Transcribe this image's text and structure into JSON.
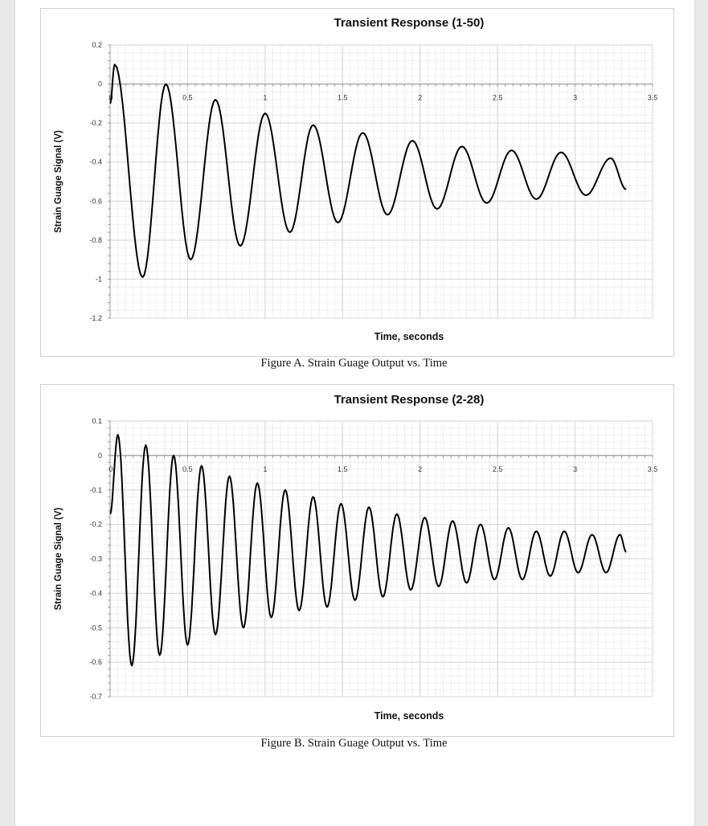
{
  "chart_data": [
    {
      "type": "line",
      "title": "Transient Response (1-50)",
      "xlabel": "Time, seconds",
      "ylabel": "Strain Guage Signal (V)",
      "caption": "Figure A. Strain Guage Output vs. Time",
      "xlim": [
        0,
        3.5
      ],
      "ylim": [
        -1.2,
        0.2
      ],
      "x_ticks": [
        "0.5",
        "1",
        "1.5",
        "2",
        "2.5",
        "3",
        "3.5"
      ],
      "y_ticks": [
        "0.2",
        "0",
        "-0.2",
        "-0.4",
        "-0.6",
        "-0.8",
        "-1",
        "-1.2"
      ],
      "grid": true,
      "series_color": "#000000",
      "x": [
        0,
        0.03,
        0.21,
        0.36,
        0.52,
        0.68,
        0.84,
        1.0,
        1.16,
        1.31,
        1.47,
        1.63,
        1.79,
        1.95,
        2.11,
        2.27,
        2.43,
        2.59,
        2.75,
        2.91,
        3.07,
        3.23,
        3.33
      ],
      "y": [
        -0.1,
        0.1,
        -0.99,
        0.0,
        -0.9,
        -0.08,
        -0.83,
        -0.15,
        -0.76,
        -0.21,
        -0.71,
        -0.25,
        -0.67,
        -0.29,
        -0.64,
        -0.32,
        -0.61,
        -0.34,
        -0.59,
        -0.35,
        -0.57,
        -0.38,
        -0.54
      ]
    },
    {
      "type": "line",
      "title": "Transient Response (2-28)",
      "xlabel": "Time, seconds",
      "ylabel": "Strain Guage Signal (V)",
      "caption": "Figure B. Strain Guage Output vs. Time",
      "xlim": [
        0,
        3.5
      ],
      "ylim": [
        -0.7,
        0.1
      ],
      "x_ticks": [
        "0.5",
        "1",
        "1.5",
        "2",
        "2.5",
        "3",
        "3.5"
      ],
      "y_ticks": [
        "0.1",
        "0",
        "-0.1",
        "-0.2",
        "-0.3",
        "-0.4",
        "-0.5",
        "-0.6",
        "-0.7"
      ],
      "grid": true,
      "series_color": "#000000",
      "x": [
        0,
        0.05,
        0.14,
        0.23,
        0.32,
        0.41,
        0.5,
        0.59,
        0.68,
        0.77,
        0.86,
        0.95,
        1.04,
        1.13,
        1.22,
        1.31,
        1.4,
        1.49,
        1.58,
        1.67,
        1.76,
        1.85,
        1.94,
        2.03,
        2.12,
        2.21,
        2.3,
        2.39,
        2.48,
        2.57,
        2.66,
        2.75,
        2.84,
        2.93,
        3.02,
        3.11,
        3.2,
        3.29,
        3.33
      ],
      "y": [
        -0.17,
        0.06,
        -0.61,
        0.03,
        -0.58,
        0.0,
        -0.55,
        -0.03,
        -0.52,
        -0.06,
        -0.5,
        -0.08,
        -0.47,
        -0.1,
        -0.45,
        -0.12,
        -0.44,
        -0.14,
        -0.42,
        -0.15,
        -0.41,
        -0.17,
        -0.39,
        -0.18,
        -0.38,
        -0.19,
        -0.37,
        -0.2,
        -0.36,
        -0.21,
        -0.36,
        -0.22,
        -0.35,
        -0.22,
        -0.34,
        -0.23,
        -0.34,
        -0.23,
        -0.28
      ]
    }
  ]
}
